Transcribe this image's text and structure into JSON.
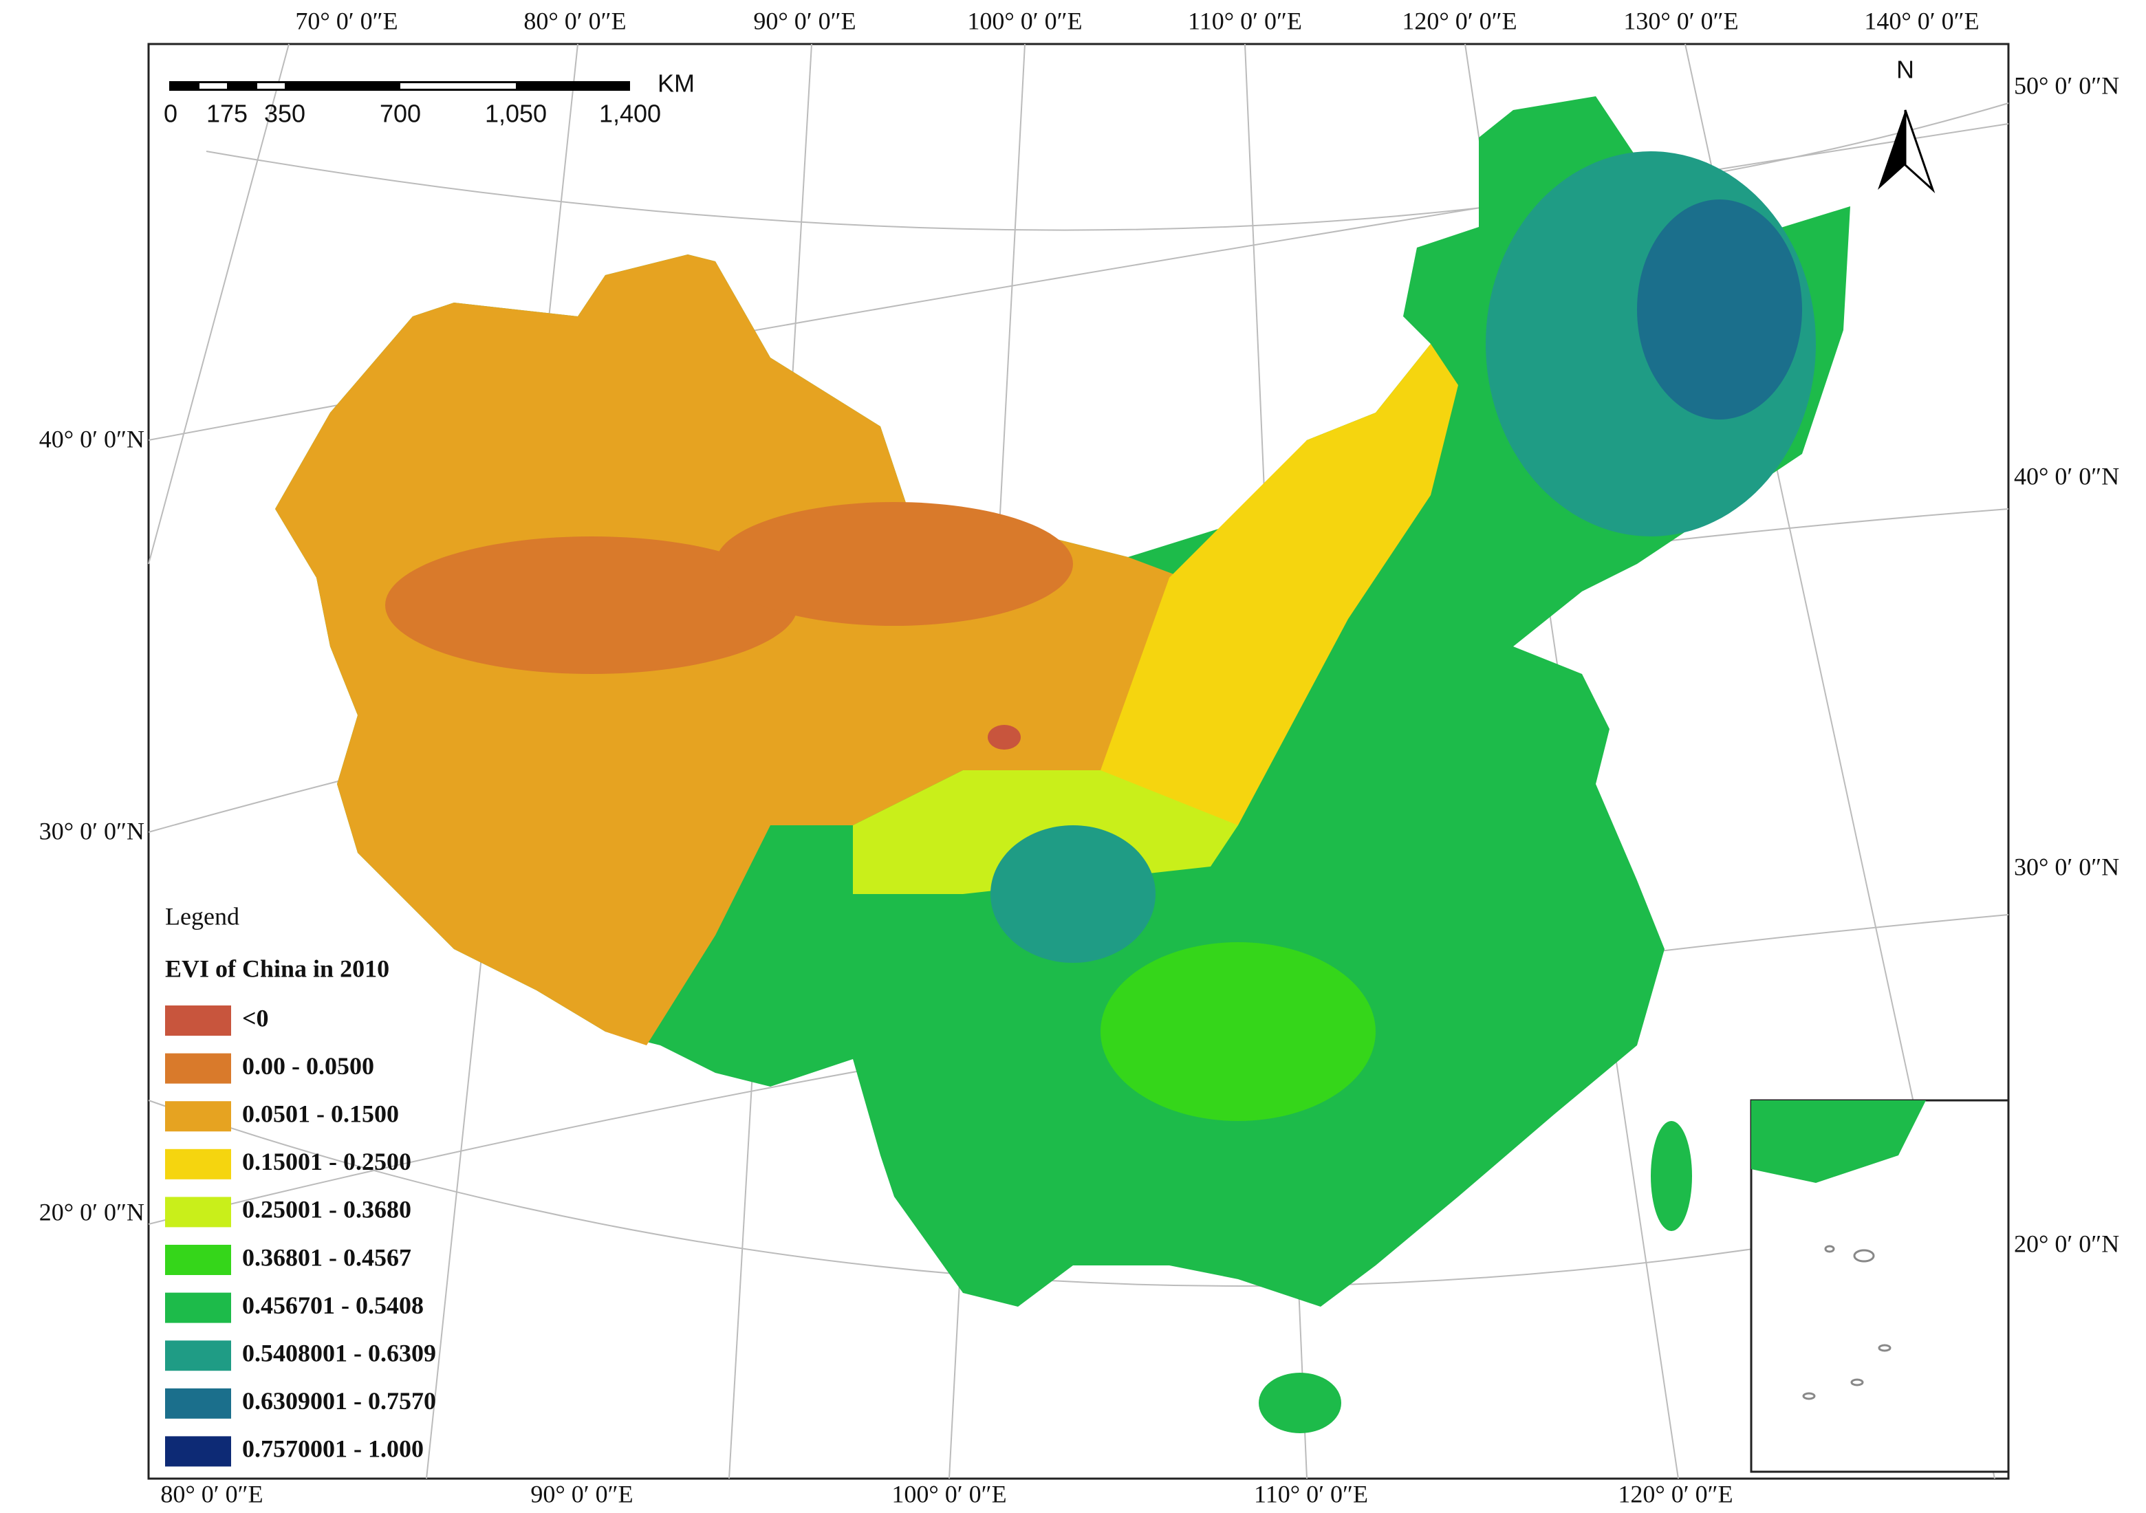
{
  "map": {
    "top_longitude_labels": [
      "70° 0′ 0″E",
      "80° 0′ 0″E",
      "90° 0′ 0″E",
      "100° 0′ 0″E",
      "110° 0′ 0″E",
      "120° 0′ 0″E",
      "130° 0′ 0″E",
      "140° 0′ 0″E"
    ],
    "bottom_longitude_labels": [
      "80° 0′ 0″E",
      "90° 0′ 0″E",
      "100° 0′ 0″E",
      "110° 0′ 0″E",
      "120° 0′ 0″E"
    ],
    "left_latitude_labels": [
      "40° 0′ 0″N",
      "30° 0′ 0″N",
      "20° 0′ 0″N"
    ],
    "right_latitude_labels": [
      "50° 0′ 0″N",
      "40° 0′ 0″N",
      "30° 0′ 0″N",
      "20° 0′ 0″N"
    ],
    "scale_bar": {
      "unit": "KM",
      "labels": [
        "0",
        "175",
        "350",
        "700",
        "1,050",
        "1,400"
      ]
    },
    "north_label": "N",
    "legend": {
      "title": "Legend",
      "subtitle": "EVI of China in 2010",
      "items": [
        {
          "label": "<0",
          "color": "#c8553d"
        },
        {
          "label": "0.00 - 0.0500",
          "color": "#d97a2b"
        },
        {
          "label": "0.0501 - 0.1500",
          "color": "#e6a321"
        },
        {
          "label": "0.15001 - 0.2500",
          "color": "#f5d50f"
        },
        {
          "label": "0.25001 - 0.3680",
          "color": "#c9ef1a"
        },
        {
          "label": "0.36801 - 0.4567",
          "color": "#35d61a"
        },
        {
          "label": "0.456701 - 0.5408",
          "color": "#1dbb4a"
        },
        {
          "label": "0.5408001 - 0.6309",
          "color": "#1f9c85"
        },
        {
          "label": "0.6309001 - 0.7570",
          "color": "#1b6f8c"
        },
        {
          "label": "0.7570001 - 1.000",
          "color": "#0d2a75"
        }
      ]
    }
  }
}
